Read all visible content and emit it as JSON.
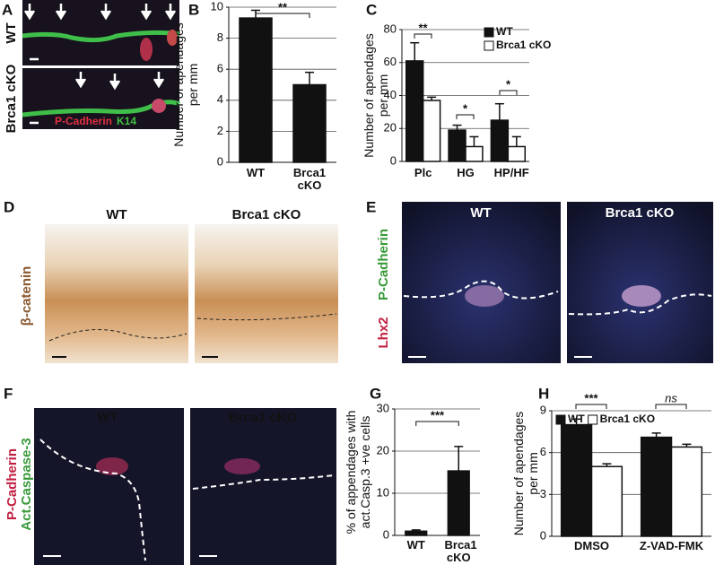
{
  "panels": {
    "letters": [
      "A",
      "B",
      "C",
      "D",
      "E",
      "F",
      "G",
      "H"
    ],
    "A": {
      "rows": [
        "WT",
        "Brca1 cKO"
      ],
      "stain": [
        "P-Cadherin",
        "K14"
      ]
    },
    "D": {
      "columns": [
        "WT",
        "Brca1 cKO"
      ],
      "stain": "β-catenin"
    },
    "E": {
      "columns": [
        "WT",
        "Brca1 cKO"
      ],
      "stain": [
        "Lhx2",
        "P-Cadherin"
      ]
    },
    "F": {
      "columns": [
        "WT",
        "Brca1 cKO"
      ],
      "stain": [
        "P-Cadherin",
        "Act.Caspase-3"
      ]
    }
  },
  "chart_data": [
    {
      "type": "bar",
      "categories": [
        "WT",
        "Brca1 cKO"
      ],
      "values": [
        9.3,
        5.0
      ],
      "errors": [
        0.5,
        0.8
      ],
      "color": "#111111",
      "ylabel": [
        "Number of apendages",
        "per mm"
      ],
      "ylim": [
        0,
        10
      ],
      "yticks": [
        0,
        2,
        4,
        6,
        8,
        10
      ],
      "grid": true,
      "annotations": [
        {
          "text": "**"
        }
      ]
    },
    {
      "type": "bar",
      "categories": [
        "Plc",
        "HG",
        "HP/HF"
      ],
      "series": [
        {
          "name": "WT",
          "color": "#111111",
          "values": [
            61,
            19,
            25
          ],
          "errors": [
            11,
            3,
            10
          ]
        },
        {
          "name": "Brca1 cKO",
          "color": "#ffffff",
          "values": [
            37,
            9,
            9
          ],
          "errors": [
            2,
            6,
            6
          ]
        }
      ],
      "ylabel": [
        "Number of apendages",
        "per mm"
      ],
      "ylim": [
        0,
        80
      ],
      "yticks": [
        0,
        20,
        40,
        60,
        80
      ],
      "grid": true,
      "legend": "upper right",
      "annotations": [
        {
          "text": "**"
        },
        {
          "text": "*"
        },
        {
          "text": "*"
        }
      ]
    },
    {
      "type": "bar",
      "categories": [
        "WT",
        "Brca1 cKO"
      ],
      "values": [
        1,
        15.3
      ],
      "errors": [
        0.3,
        5.8
      ],
      "color": "#111111",
      "ylabel": [
        "% of appendages with",
        "act.Casp.3 +ve cells"
      ],
      "ylim": [
        0,
        30
      ],
      "yticks": [
        0,
        10,
        20,
        30
      ],
      "grid": true,
      "annotations": [
        {
          "text": "***"
        }
      ]
    },
    {
      "type": "bar",
      "categories": [
        "DMSO",
        "Z-VAD-FMK"
      ],
      "series": [
        {
          "name": "WT",
          "color": "#111111",
          "values": [
            8.0,
            7.1
          ],
          "errors": [
            0.4,
            0.3
          ]
        },
        {
          "name": "Brca1 cKO",
          "color": "#ffffff",
          "values": [
            5.0,
            6.4
          ],
          "errors": [
            0.2,
            0.2
          ]
        }
      ],
      "ylabel": [
        "Number of apendages",
        "per mm"
      ],
      "ylim": [
        0,
        9
      ],
      "yticks": [
        0,
        3,
        6,
        9
      ],
      "grid": true,
      "legend": "upper left",
      "annotations": [
        {
          "text": "***"
        },
        {
          "text": "ns",
          "italic": true
        }
      ]
    }
  ]
}
